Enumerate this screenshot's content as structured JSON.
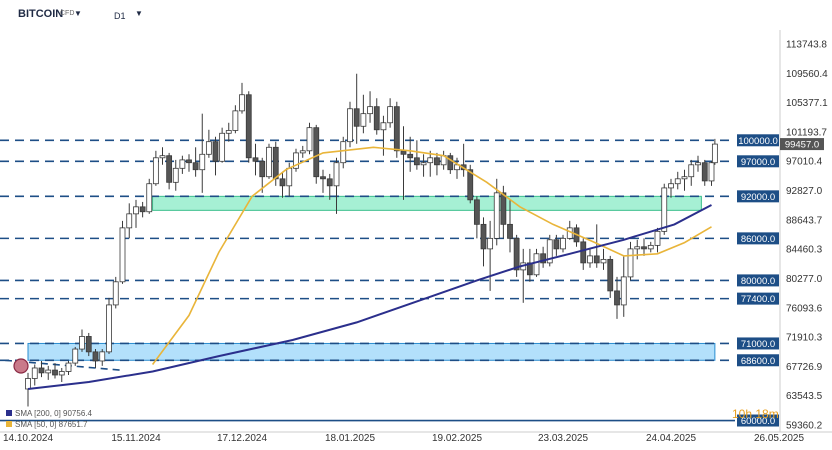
{
  "header": {
    "symbol": "BITCOIN",
    "badge": "CFD",
    "timeframe": "D1"
  },
  "chart_data": {
    "type": "candlestick",
    "y_ticks": [
      113743.8,
      109560.4,
      105377.1,
      101193.7,
      97010.4,
      92827.0,
      88643.7,
      84460.3,
      80277.0,
      76093.6,
      71910.3,
      67726.9,
      63543.5,
      59360.2
    ],
    "x_ticks": [
      "14.10.2024",
      "15.11.2024",
      "17.12.2024",
      "18.01.2025",
      "19.02.2025",
      "23.03.2025",
      "24.04.2025",
      "26.05.2025"
    ],
    "x_tick_dates": [
      "2024-10-14",
      "2024-11-15",
      "2024-12-17",
      "2025-01-18",
      "2025-02-19",
      "2025-03-23",
      "2025-04-24",
      "2025-05-26"
    ],
    "ylim": [
      59360.2,
      117000
    ],
    "xlim": [
      "2024-10-14",
      "2025-05-26"
    ],
    "last_price": "99457.0",
    "horizontal_levels": [
      {
        "label": "100000.0",
        "value": 100000.0
      },
      {
        "label": "97000.0",
        "value": 97000.0
      },
      {
        "label": "92000.0",
        "value": 92000.0
      },
      {
        "label": "86000.0",
        "value": 86000.0
      },
      {
        "label": "80000.0",
        "value": 80000.0
      },
      {
        "label": "77400.0",
        "value": 77400.0
      },
      {
        "label": "71000.0",
        "value": 71000.0
      },
      {
        "label": "68600.0",
        "value": 68600.0
      },
      {
        "label": "60000.0",
        "value": 60000.0
      }
    ],
    "zones": [
      {
        "from": "2024-11-20",
        "to": "2025-05-03",
        "low": 90000,
        "high": 92000,
        "color": "#a6f0d4"
      },
      {
        "from": "2024-10-14",
        "to": "2025-05-07",
        "low": 68600,
        "high": 71000,
        "color": "#b3e0fb"
      }
    ],
    "indicators": [
      {
        "label": "SMA [200, 0] 90756.4",
        "color": "#2b2f8c"
      },
      {
        "label": "SMA [50, 0] 87651.7",
        "color": "#e9b53a"
      }
    ],
    "timer": "10h 18m",
    "series": [
      {
        "name": "SMA 50",
        "points": [
          [
            "2024-11-20",
            68000
          ],
          [
            "2024-12-01",
            75000
          ],
          [
            "2024-12-10",
            84000
          ],
          [
            "2024-12-20",
            92000
          ],
          [
            "2024-12-30",
            95800
          ],
          [
            "2025-01-10",
            98200
          ],
          [
            "2025-01-25",
            99000
          ],
          [
            "2025-02-05",
            98500
          ],
          [
            "2025-02-15",
            97800
          ],
          [
            "2025-02-28",
            94000
          ],
          [
            "2025-03-10",
            90500
          ],
          [
            "2025-03-20",
            88000
          ],
          [
            "2025-04-01",
            85500
          ],
          [
            "2025-04-10",
            83500
          ],
          [
            "2025-04-20",
            83800
          ],
          [
            "2025-04-28",
            85400
          ],
          [
            "2025-05-06",
            87651.7
          ]
        ]
      },
      {
        "name": "SMA 200",
        "points": [
          [
            "2024-10-14",
            64500
          ],
          [
            "2024-11-01",
            65500
          ],
          [
            "2024-11-20",
            67000
          ],
          [
            "2024-12-10",
            69200
          ],
          [
            "2025-01-01",
            71500
          ],
          [
            "2025-01-20",
            74000
          ],
          [
            "2025-02-10",
            77500
          ],
          [
            "2025-02-25",
            80000
          ],
          [
            "2025-03-10",
            82000
          ],
          [
            "2025-03-25",
            83800
          ],
          [
            "2025-04-10",
            85800
          ],
          [
            "2025-04-25",
            88000
          ],
          [
            "2025-05-06",
            90756.4
          ]
        ]
      }
    ],
    "candles": [
      [
        "2024-10-14",
        64500,
        66800,
        62000,
        66000
      ],
      [
        "2024-10-16",
        66000,
        68000,
        65000,
        67500
      ],
      [
        "2024-10-18",
        67500,
        68500,
        66200,
        66800
      ],
      [
        "2024-10-20",
        66800,
        67800,
        65800,
        67200
      ],
      [
        "2024-10-22",
        67200,
        68200,
        66000,
        66500
      ],
      [
        "2024-10-24",
        66500,
        67500,
        65500,
        67000
      ],
      [
        "2024-10-26",
        67000,
        68500,
        66500,
        68200
      ],
      [
        "2024-10-28",
        68200,
        70500,
        67800,
        70200
      ],
      [
        "2024-10-30",
        70200,
        73000,
        69800,
        72000
      ],
      [
        "2024-11-01",
        72000,
        72500,
        69200,
        69800
      ],
      [
        "2024-11-03",
        69800,
        70200,
        67500,
        68500
      ],
      [
        "2024-11-05",
        68500,
        70200,
        67800,
        69800
      ],
      [
        "2024-11-07",
        69800,
        77500,
        69500,
        76500
      ],
      [
        "2024-11-09",
        76500,
        80500,
        76000,
        79800
      ],
      [
        "2024-11-11",
        79800,
        88500,
        79500,
        87500
      ],
      [
        "2024-11-13",
        87500,
        91000,
        86000,
        89500
      ],
      [
        "2024-11-15",
        89500,
        91500,
        87500,
        90500
      ],
      [
        "2024-11-17",
        90500,
        91200,
        89000,
        89800
      ],
      [
        "2024-11-19",
        89800,
        94500,
        89500,
        93800
      ],
      [
        "2024-11-21",
        93800,
        98500,
        93500,
        97500
      ],
      [
        "2024-11-23",
        97500,
        99000,
        96500,
        97800
      ],
      [
        "2024-11-25",
        97800,
        98200,
        93000,
        94000
      ],
      [
        "2024-11-27",
        94000,
        97200,
        92800,
        96000
      ],
      [
        "2024-11-29",
        96000,
        97800,
        95200,
        97200
      ],
      [
        "2024-12-01",
        97200,
        98000,
        95500,
        96800
      ],
      [
        "2024-12-03",
        96800,
        99000,
        94800,
        95800
      ],
      [
        "2024-12-05",
        95800,
        103800,
        92500,
        98000
      ],
      [
        "2024-12-07",
        98000,
        101500,
        97500,
        99800
      ],
      [
        "2024-12-09",
        99800,
        100500,
        95000,
        97000
      ],
      [
        "2024-12-11",
        97000,
        101800,
        96800,
        101000
      ],
      [
        "2024-12-13",
        101000,
        102500,
        99800,
        101400
      ],
      [
        "2024-12-15",
        101400,
        105000,
        101000,
        104200
      ],
      [
        "2024-12-17",
        104200,
        108200,
        103800,
        106500
      ],
      [
        "2024-12-19",
        106500,
        107000,
        96800,
        97500
      ],
      [
        "2024-12-21",
        97500,
        99500,
        95000,
        97000
      ],
      [
        "2024-12-23",
        97000,
        97500,
        92500,
        94800
      ],
      [
        "2024-12-25",
        94800,
        99500,
        94500,
        99000
      ],
      [
        "2024-12-27",
        99000,
        99800,
        93500,
        94500
      ],
      [
        "2024-12-29",
        94500,
        95500,
        91800,
        93500
      ],
      [
        "2024-12-31",
        93500,
        96800,
        92000,
        96000
      ],
      [
        "2025-01-02",
        96000,
        98800,
        95500,
        98200
      ],
      [
        "2025-01-04",
        98200,
        99200,
        97500,
        98500
      ],
      [
        "2025-01-06",
        98500,
        102500,
        98000,
        101800
      ],
      [
        "2025-01-08",
        101800,
        102200,
        93800,
        94800
      ],
      [
        "2025-01-10",
        94800,
        95800,
        92500,
        94500
      ],
      [
        "2025-01-12",
        94500,
        95200,
        91500,
        93500
      ],
      [
        "2025-01-14",
        93500,
        97500,
        89500,
        96800
      ],
      [
        "2025-01-16",
        96800,
        100500,
        96000,
        99800
      ],
      [
        "2025-01-18",
        99800,
        105500,
        99000,
        104500
      ],
      [
        "2025-01-20",
        104500,
        109500,
        99500,
        102000
      ],
      [
        "2025-01-22",
        102000,
        106500,
        101000,
        103800
      ],
      [
        "2025-01-24",
        103800,
        107000,
        102500,
        104800
      ],
      [
        "2025-01-26",
        104800,
        106000,
        100800,
        101500
      ],
      [
        "2025-01-28",
        101500,
        103500,
        97800,
        102500
      ],
      [
        "2025-01-30",
        102500,
        106000,
        101800,
        104800
      ],
      [
        "2025-02-01",
        104800,
        105500,
        97500,
        98500
      ],
      [
        "2025-02-03",
        98500,
        102000,
        91500,
        98000
      ],
      [
        "2025-02-05",
        98000,
        100500,
        95500,
        97500
      ],
      [
        "2025-02-07",
        97500,
        100000,
        95800,
        96500
      ],
      [
        "2025-02-09",
        96500,
        98000,
        94800,
        96800
      ],
      [
        "2025-02-11",
        96800,
        98500,
        94800,
        97500
      ],
      [
        "2025-02-13",
        97500,
        98200,
        95000,
        96500
      ],
      [
        "2025-02-15",
        96500,
        98500,
        95800,
        97800
      ],
      [
        "2025-02-17",
        97800,
        98200,
        95200,
        95800
      ],
      [
        "2025-02-19",
        95800,
        97500,
        94500,
        96500
      ],
      [
        "2025-02-21",
        96500,
        99500,
        94800,
        95800
      ],
      [
        "2025-02-23",
        95800,
        96500,
        91000,
        91500
      ],
      [
        "2025-02-25",
        91500,
        92000,
        86000,
        88000
      ],
      [
        "2025-02-27",
        88000,
        89000,
        82000,
        84500
      ],
      [
        "2025-03-01",
        84500,
        88500,
        78500,
        86000
      ],
      [
        "2025-03-03",
        86000,
        94500,
        85000,
        92500
      ],
      [
        "2025-03-05",
        92500,
        93500,
        86000,
        88000
      ],
      [
        "2025-03-07",
        88000,
        91500,
        84000,
        86000
      ],
      [
        "2025-03-09",
        86000,
        86500,
        80500,
        81500
      ],
      [
        "2025-03-11",
        81500,
        84500,
        76800,
        82500
      ],
      [
        "2025-03-13",
        82500,
        84500,
        79800,
        80800
      ],
      [
        "2025-03-15",
        80800,
        84500,
        80500,
        83800
      ],
      [
        "2025-03-17",
        83800,
        84800,
        81800,
        82500
      ],
      [
        "2025-03-19",
        82500,
        86500,
        82000,
        85800
      ],
      [
        "2025-03-21",
        85800,
        86500,
        83500,
        84500
      ],
      [
        "2025-03-23",
        84500,
        86500,
        84000,
        86000
      ],
      [
        "2025-03-25",
        86000,
        88500,
        85800,
        87500
      ],
      [
        "2025-03-27",
        87500,
        88000,
        84800,
        85500
      ],
      [
        "2025-03-29",
        85500,
        86000,
        81500,
        82500
      ],
      [
        "2025-03-31",
        82500,
        84500,
        81800,
        83500
      ],
      [
        "2025-04-02",
        83500,
        88000,
        81800,
        82500
      ],
      [
        "2025-04-04",
        82500,
        84500,
        81500,
        83000
      ],
      [
        "2025-04-06",
        83000,
        83500,
        77500,
        78500
      ],
      [
        "2025-04-08",
        78500,
        80500,
        74500,
        76500
      ],
      [
        "2025-04-10",
        76500,
        83500,
        74800,
        80500
      ],
      [
        "2025-04-12",
        80500,
        85500,
        80000,
        84500
      ],
      [
        "2025-04-14",
        84500,
        85800,
        83000,
        84800
      ],
      [
        "2025-04-16",
        84800,
        86000,
        83500,
        84500
      ],
      [
        "2025-04-18",
        84500,
        85500,
        84000,
        85000
      ],
      [
        "2025-04-20",
        85000,
        87500,
        84000,
        87000
      ],
      [
        "2025-04-22",
        87000,
        93800,
        86500,
        93200
      ],
      [
        "2025-04-24",
        93200,
        94500,
        91800,
        93800
      ],
      [
        "2025-04-26",
        93800,
        95500,
        93000,
        94500
      ],
      [
        "2025-04-28",
        94500,
        95800,
        92800,
        94800
      ],
      [
        "2025-04-30",
        94800,
        97200,
        93500,
        96500
      ],
      [
        "2025-05-02",
        96500,
        97800,
        95500,
        96800
      ],
      [
        "2025-05-04",
        96800,
        97200,
        93500,
        94200
      ],
      [
        "2025-05-06",
        94200,
        97000,
        93500,
        96800
      ],
      [
        "2025-05-07",
        96800,
        100200,
        96500,
        99457
      ]
    ]
  }
}
